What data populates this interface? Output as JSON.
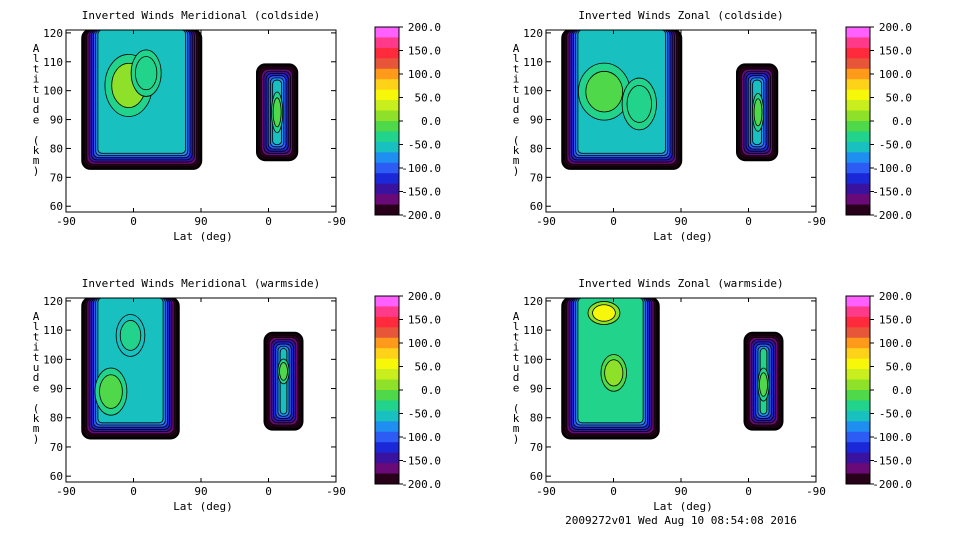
{
  "footer": "2009272v01 Wed Aug 10 08:54:08 2016",
  "colorbar": {
    "ticks": [
      "200.0",
      "150.0",
      "100.0",
      "50.0",
      "0.0",
      "-50.0",
      "-100.0",
      "-150.0",
      "-200.0"
    ],
    "colors": [
      "#ff60ff",
      "#ff3a8a",
      "#ff2a3c",
      "#e8563a",
      "#ff9a1a",
      "#ffd21a",
      "#f7f70a",
      "#c8ee1e",
      "#8ee028",
      "#4ed84a",
      "#22d38c",
      "#18c0c0",
      "#1e8ef0",
      "#2d5cf5",
      "#1a28d8",
      "#3a12a0",
      "#6a0a78",
      "#28001a"
    ]
  },
  "chart_data": [
    {
      "type": "heatmap",
      "title": "Inverted Winds Meridional (coldside)",
      "xlabel": "Lat (deg)",
      "ylabel": "Altitude (km)",
      "x_ticks": [
        "-90",
        "0",
        "90",
        "0",
        "-90"
      ],
      "y_ticks": [
        "60",
        "70",
        "80",
        "90",
        "100",
        "110",
        "120"
      ],
      "ylim": [
        58,
        121
      ],
      "color_range": [
        -200,
        200
      ],
      "regions": [
        {
          "x": [
            -68,
            90
          ],
          "y": [
            73,
            121
          ],
          "dominant_value": -50,
          "extremes": [
            5,
            -200
          ]
        },
        {
          "x": [
            -15,
            38
          ],
          "y": [
            76,
            109
          ],
          "dominant_value": -50,
          "extremes": [
            -20,
            -200
          ]
        }
      ]
    },
    {
      "type": "heatmap",
      "title": "Inverted Winds Zonal (coldside)",
      "xlabel": "Lat (deg)",
      "ylabel": "Altitude (km)",
      "x_ticks": [
        "-90",
        "0",
        "90",
        "0",
        "-90"
      ],
      "y_ticks": [
        "60",
        "70",
        "80",
        "90",
        "100",
        "110",
        "120"
      ],
      "ylim": [
        58,
        121
      ],
      "color_range": [
        -200,
        200
      ],
      "regions": [
        {
          "x": [
            -68,
            90
          ],
          "y": [
            73,
            121
          ],
          "dominant_value": -45,
          "extremes": [
            -5,
            -200
          ]
        },
        {
          "x": [
            -15,
            38
          ],
          "y": [
            76,
            109
          ],
          "dominant_value": -45,
          "extremes": [
            -10,
            -200
          ]
        }
      ]
    },
    {
      "type": "heatmap",
      "title": "Inverted Winds Meridional (warmside)",
      "xlabel": "Lat (deg)",
      "ylabel": "Altitude (km)",
      "x_ticks": [
        "-90",
        "0",
        "90",
        "0",
        "-90"
      ],
      "y_ticks": [
        "60",
        "70",
        "80",
        "90",
        "100",
        "110",
        "120"
      ],
      "ylim": [
        58,
        121
      ],
      "color_range": [
        -200,
        200
      ],
      "regions": [
        {
          "x": [
            -68,
            60
          ],
          "y": [
            73,
            121
          ],
          "dominant_value": -60,
          "extremes": [
            -5,
            -200
          ]
        },
        {
          "x": [
            -5,
            45
          ],
          "y": [
            76,
            109
          ],
          "dominant_value": -50,
          "extremes": [
            -5,
            -200
          ]
        }
      ]
    },
    {
      "type": "heatmap",
      "title": "Inverted Winds Zonal (warmside)",
      "xlabel": "Lat (deg)",
      "ylabel": "Altitude (km)",
      "x_ticks": [
        "-90",
        "0",
        "90",
        "0",
        "-90"
      ],
      "y_ticks": [
        "60",
        "70",
        "80",
        "90",
        "100",
        "110",
        "120"
      ],
      "ylim": [
        58,
        121
      ],
      "color_range": [
        -200,
        200
      ],
      "regions": [
        {
          "x": [
            -68,
            60
          ],
          "y": [
            73,
            121
          ],
          "dominant_value": -40,
          "extremes": [
            65,
            -200
          ]
        },
        {
          "x": [
            -5,
            45
          ],
          "y": [
            76,
            109
          ],
          "dominant_value": -40,
          "extremes": [
            -10,
            -200
          ]
        }
      ]
    }
  ]
}
